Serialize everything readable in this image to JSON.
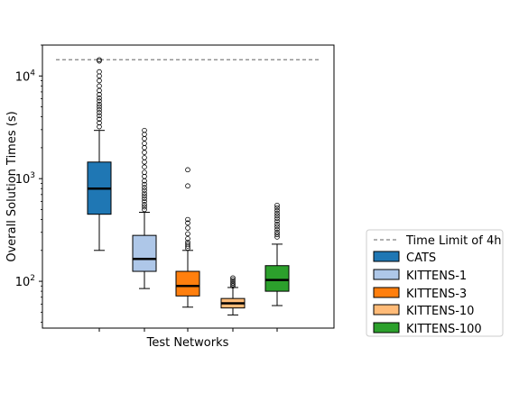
{
  "chart_data": {
    "type": "box",
    "xlabel": "Test Networks",
    "ylabel": "Overall Solution Times (s)",
    "yscale": "log",
    "ylim": [
      35,
      20000
    ],
    "y_ticks": [
      {
        "value": 100,
        "base": "10",
        "exp": "2"
      },
      {
        "value": 1000,
        "base": "10",
        "exp": "3"
      },
      {
        "value": 10000,
        "base": "10",
        "exp": "4"
      }
    ],
    "reference_line": {
      "label": "Time Limit of 4h",
      "value": 14400,
      "color": "#808080",
      "style": "dashed"
    },
    "grid": false,
    "legend_placement": "outside-right",
    "series": [
      {
        "name": "CATS",
        "color": "#1f77b4",
        "whisker_low": 200,
        "q1": 450,
        "median": 800,
        "q3": 1450,
        "whisker_high": 2950,
        "outliers": [
          3200,
          3500,
          3800,
          4100,
          4400,
          4700,
          5000,
          5300,
          5700,
          6100,
          6600,
          7200,
          8000,
          9000,
          10000,
          11000,
          14000,
          14400
        ]
      },
      {
        "name": "KITTENS-1",
        "color": "#aec7e8",
        "whisker_low": 85,
        "q1": 125,
        "median": 165,
        "q3": 280,
        "whisker_high": 470,
        "outliers": [
          500,
          530,
          560,
          600,
          640,
          680,
          720,
          770,
          820,
          880,
          950,
          1050,
          1150,
          1300,
          1450,
          1600,
          1800,
          2000,
          2200,
          2450,
          2700,
          2950
        ]
      },
      {
        "name": "KITTENS-3",
        "color": "#ff7f0e",
        "whisker_low": 56,
        "q1": 72,
        "median": 90,
        "q3": 125,
        "whisker_high": 200,
        "outliers": [
          210,
          220,
          230,
          240,
          260,
          290,
          330,
          370,
          400,
          850,
          1220
        ]
      },
      {
        "name": "KITTENS-10",
        "color": "#ffbb78",
        "whisker_low": 47,
        "q1": 55,
        "median": 61,
        "q3": 68,
        "whisker_high": 87,
        "outliers": [
          90,
          93,
          96,
          100,
          104,
          108
        ]
      },
      {
        "name": "KITTENS-100",
        "color": "#2ca02c",
        "whisker_low": 58,
        "q1": 80,
        "median": 103,
        "q3": 142,
        "whisker_high": 230,
        "outliers": [
          270,
          285,
          300,
          320,
          340,
          360,
          385,
          410,
          435,
          460,
          490,
          520,
          550
        ]
      }
    ]
  }
}
